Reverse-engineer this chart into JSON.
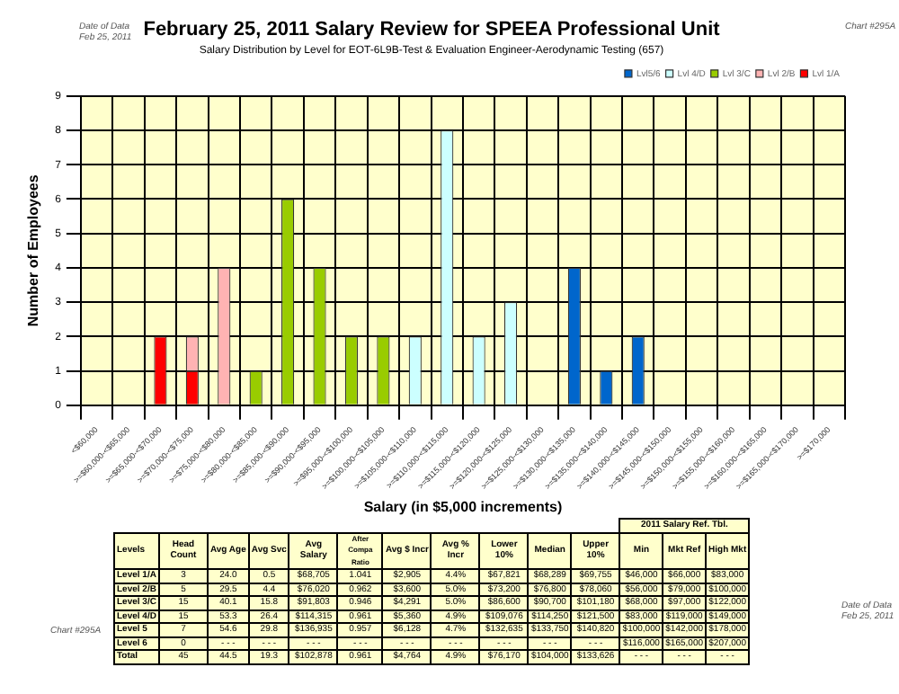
{
  "chart_data": {
    "type": "bar",
    "title": "February 25, 2011 Salary Review for SPEEA Professional Unit",
    "subtitle": "Salary Distribution by Level for EOT-6L9B-Test & Evaluation Engineer-Aerodynamic Testing (657)",
    "xlabel": "Salary (in $5,000 increments)",
    "ylabel": "Number of Employees",
    "categories": [
      "<$60,000",
      ">=$60,000-<$65,000",
      ">=$65,000-<$70,000",
      ">=$70,000-<$75,000",
      ">=$75,000-<$80,000",
      ">=$80,000-<$85,000",
      ">=$85,000-<$90,000",
      ">=$90,000-<$95,000",
      ">=$95,000-<$100,000",
      ">=$100,000-<$105,000",
      ">=$105,000-<$110,000",
      ">=$110,000-<$115,000",
      ">=$115,000-<$120,000",
      ">=$120,000-<$125,000",
      ">=$125,000-<$130,000",
      ">=$130,000-<$135,000",
      ">=$135,000-<$140,000",
      ">=$140,000-<$145,000",
      ">=$145,000-<$150,000",
      ">=$150,000-<$155,000",
      ">=$155,000-<$160,000",
      ">=$160,000-<$165,000",
      ">=$165,000-<$170,000",
      ">=$170,000"
    ],
    "series": [
      {
        "name": "Lvl 1/A",
        "color": "#ff0000",
        "values": [
          null,
          null,
          2,
          1,
          null,
          null,
          null,
          null,
          null,
          null,
          null,
          null,
          null,
          null,
          null,
          null,
          null,
          null,
          null,
          null,
          null,
          null,
          null,
          null
        ]
      },
      {
        "name": "Lvl 2/B",
        "color": "#ffb3b3",
        "values": [
          null,
          null,
          null,
          1,
          4,
          null,
          null,
          null,
          null,
          null,
          null,
          null,
          null,
          null,
          null,
          null,
          null,
          null,
          null,
          null,
          null,
          null,
          null,
          null
        ]
      },
      {
        "name": "Lvl 3/C",
        "color": "#99cc00",
        "values": [
          null,
          null,
          null,
          null,
          null,
          1,
          6,
          4,
          2,
          2,
          null,
          null,
          null,
          null,
          null,
          null,
          null,
          null,
          null,
          null,
          null,
          null,
          null,
          null
        ]
      },
      {
        "name": "Lvl 4/D",
        "color": "#ccffff",
        "values": [
          null,
          null,
          null,
          null,
          null,
          null,
          null,
          null,
          null,
          null,
          2,
          8,
          2,
          3,
          null,
          null,
          null,
          null,
          null,
          null,
          null,
          null,
          null,
          null
        ]
      },
      {
        "name": "Lvl5/6",
        "color": "#0066cc",
        "values": [
          null,
          null,
          null,
          null,
          null,
          null,
          null,
          null,
          null,
          null,
          null,
          null,
          null,
          null,
          null,
          4,
          1,
          2,
          null,
          null,
          null,
          null,
          null,
          null
        ]
      }
    ],
    "stacked": true,
    "ylim": [
      0,
      9
    ],
    "yticks": [
      0,
      1,
      2,
      3,
      4,
      5,
      6,
      7,
      8,
      9
    ],
    "grid": true,
    "legend": "top right",
    "annotations": [
      "Date of Data",
      "Feb 25, 2011",
      "Chart #295A",
      "Chart #295A",
      "Date of Data",
      "Feb 25, 2011",
      "2011 Salary Ref. Tbl.",
      "Levels",
      "Head Count",
      "Avg Age",
      "Avg Svc",
      "Avg Salary",
      "After Compa Ratio",
      "Avg $ Incr",
      "Avg % Incr",
      "Lower 10%",
      "Median",
      "Upper 10%",
      "Min",
      "Mkt Ref",
      "High Mkt",
      "Level 1/A",
      "3",
      "24.0",
      "0.5",
      "$68,705",
      "1.041",
      "$2,905",
      "4.4%",
      "$67,821",
      "$68,289",
      "$69,755",
      "$46,000",
      "$66,000",
      "$83,000",
      "Level 2/B",
      "5",
      "29.5",
      "4.4",
      "$76,020",
      "0.962",
      "$3,600",
      "5.0%",
      "$73,200",
      "$76,800",
      "$78,060",
      "$56,000",
      "$79,000",
      "$100,000",
      "Level 3/C",
      "15",
      "40.1",
      "15.8",
      "$91,803",
      "0.946",
      "$4,291",
      "5.0%",
      "$86,600",
      "$90,700",
      "$101,180",
      "$68,000",
      "$97,000",
      "$122,000",
      "Level 4/D",
      "15",
      "53.3",
      "26.4",
      "$114,315",
      "0.961",
      "$5,360",
      "4.9%",
      "$109,076",
      "$114,250",
      "$121,500",
      "$83,000",
      "$119,000",
      "$149,000",
      "Level 5",
      "7",
      "54.6",
      "29.8",
      "$136,935",
      "0.957",
      "$6,128",
      "4.7%",
      "$132,635",
      "$133,750",
      "$140,820",
      "$100,000",
      "$142,000",
      "$178,000",
      "Level 6",
      "0",
      "- - -",
      "- - -",
      "- - -",
      "- - -",
      "- - -",
      "- - -",
      "- - -",
      "- - -",
      "- - -",
      "$116,000",
      "$165,000",
      "$207,000",
      "Total",
      "45",
      "44.5",
      "19.3",
      "$102,878",
      "0.961",
      "$4,764",
      "4.9%",
      "$76,170",
      "$104,000",
      "$133,626",
      "- - -",
      "- - -",
      "- - -"
    ]
  }
}
